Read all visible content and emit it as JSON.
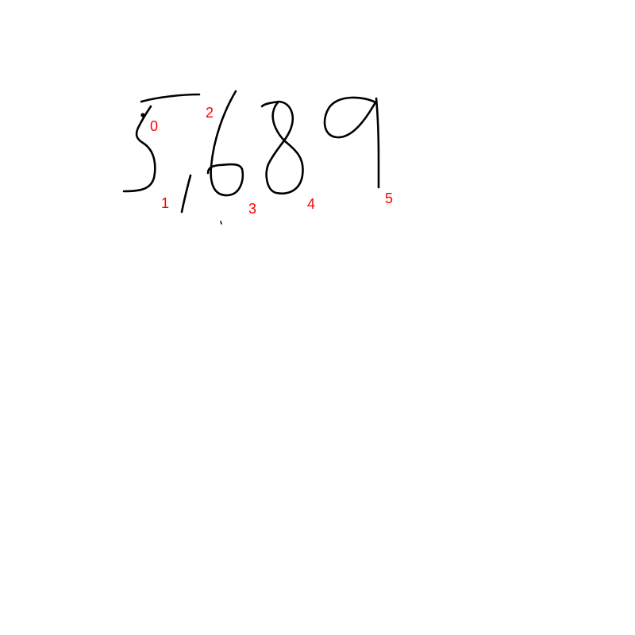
{
  "ink_color": "#000000",
  "label_color": "#ff0000",
  "background": "#ffffff",
  "strokes": [
    {
      "id": 0,
      "label": "0"
    },
    {
      "id": 1,
      "label": "1"
    },
    {
      "id": 2,
      "label": "2"
    },
    {
      "id": 3,
      "label": "3"
    },
    {
      "id": 4,
      "label": "4"
    },
    {
      "id": 5,
      "label": "5"
    }
  ]
}
